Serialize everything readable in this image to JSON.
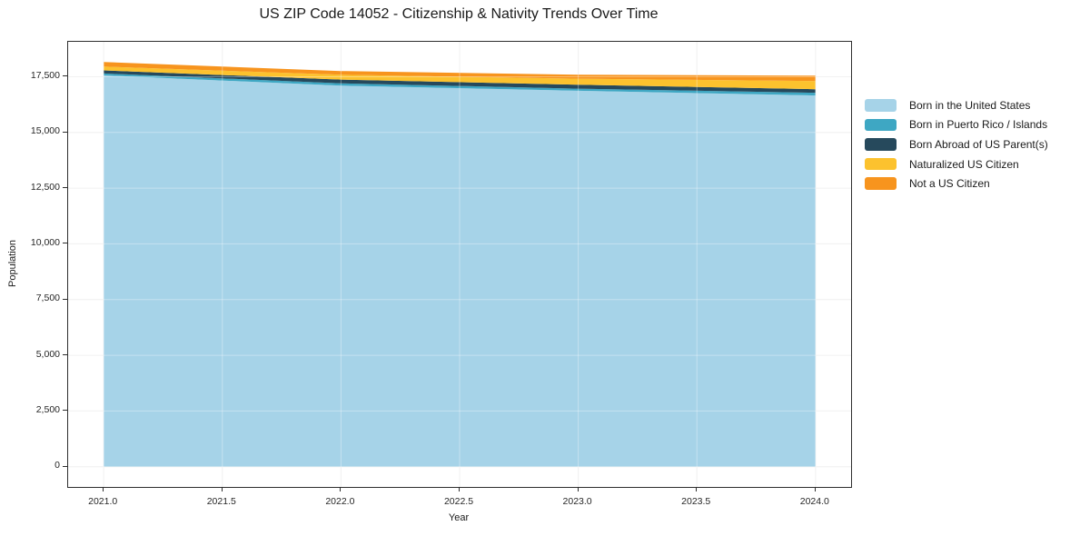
{
  "title": "US ZIP Code 14052 - Citizenship & Nativity Trends Over Time",
  "chart_data": {
    "type": "area",
    "stacked": true,
    "title": "US ZIP Code 14052 - Citizenship & Nativity Trends Over Time",
    "xlabel": "Year",
    "ylabel": "Population",
    "x": [
      2021,
      2022,
      2023,
      2024
    ],
    "series": [
      {
        "name": "Born in the United States",
        "color": "#a6d3e8",
        "values": [
          17560,
          17100,
          16870,
          16660
        ]
      },
      {
        "name": "Born in Puerto Rico / Islands",
        "color": "#3ea7c3",
        "values": [
          85,
          105,
          95,
          120
        ]
      },
      {
        "name": "Born Abroad of US Parent(s)",
        "color": "#26495c",
        "values": [
          140,
          165,
          175,
          160
        ]
      },
      {
        "name": "Naturalized US Citizen",
        "color": "#fcc22e",
        "values": [
          170,
          220,
          270,
          365
        ]
      },
      {
        "name": "Not a US Citizen",
        "color": "#f7941e",
        "values": [
          205,
          165,
          180,
          245
        ]
      }
    ],
    "x_tick_values": [
      2021.0,
      2021.5,
      2022.0,
      2022.5,
      2023.0,
      2023.5,
      2024.0
    ],
    "x_tick_labels": [
      "2021.0",
      "2021.5",
      "2022.0",
      "2022.5",
      "2023.0",
      "2023.5",
      "2024.0"
    ],
    "y_tick_values": [
      0,
      2500,
      5000,
      7500,
      10000,
      12500,
      15000,
      17500
    ],
    "y_tick_labels": [
      "0",
      "2,500",
      "5,000",
      "7,500",
      "10,000",
      "12,500",
      "15,000",
      "17,500"
    ],
    "xlim": [
      2020.85,
      2024.15
    ],
    "ylim": [
      -908,
      19068
    ],
    "grid": true,
    "legend_position": "right-outside"
  }
}
